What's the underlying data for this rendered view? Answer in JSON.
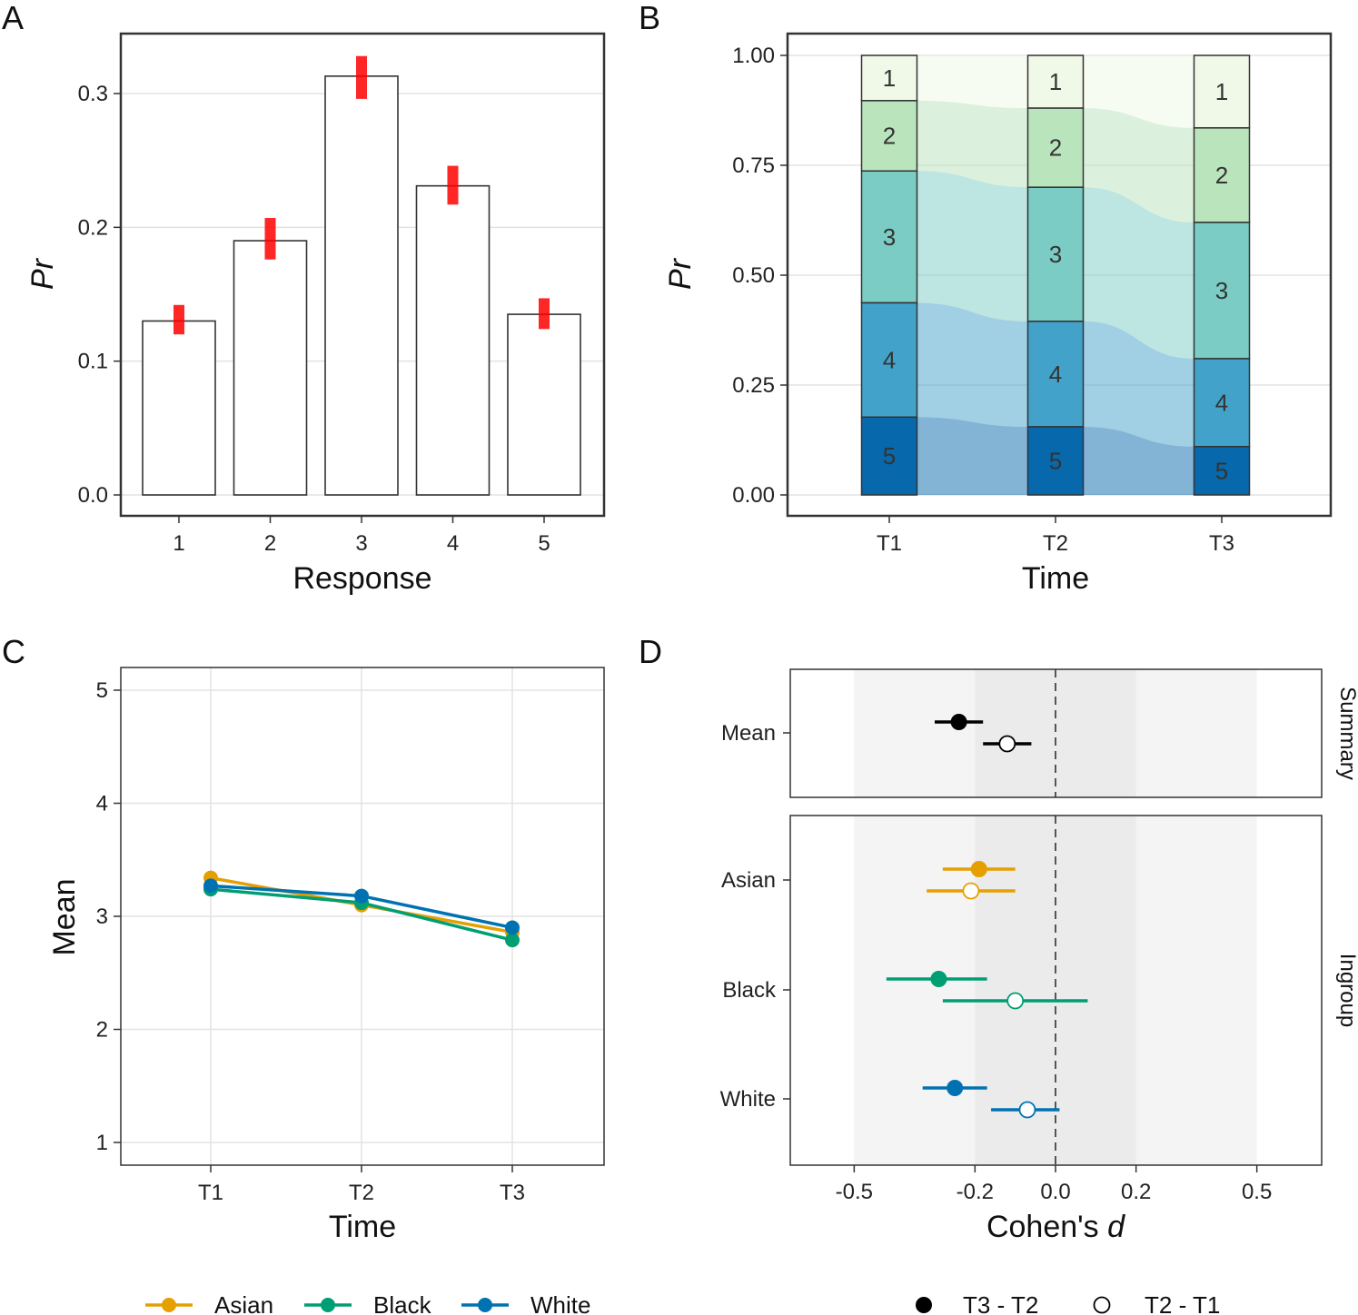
{
  "chart_data": [
    {
      "panel": "A",
      "type": "bar",
      "xlabel": "Response",
      "ylabel": "Pr",
      "categories": [
        "1",
        "2",
        "3",
        "4",
        "5"
      ],
      "values": [
        0.13,
        0.19,
        0.313,
        0.231,
        0.135
      ],
      "posterior_intervals": [
        [
          0.12,
          0.142
        ],
        [
          0.176,
          0.207
        ],
        [
          0.296,
          0.328
        ],
        [
          0.217,
          0.246
        ],
        [
          0.124,
          0.147
        ]
      ],
      "interval_color": "#ff0000",
      "ylim": [
        0,
        0.33
      ],
      "yticks": [
        "0.0",
        "0.1",
        "0.2",
        "0.3"
      ],
      "grid": true
    },
    {
      "panel": "B",
      "type": "stacked_bar_alluvial",
      "xlabel": "Time",
      "ylabel": "Pr",
      "categories": [
        "T1",
        "T2",
        "T3"
      ],
      "stack_levels": [
        "1",
        "2",
        "3",
        "4",
        "5"
      ],
      "stack_colors": [
        "#f0f9e8",
        "#bae4bc",
        "#7bccc4",
        "#43a2ca",
        "#0868ac"
      ],
      "proportions": {
        "T1": [
          0.103,
          0.16,
          0.3,
          0.26,
          0.177
        ],
        "T2": [
          0.12,
          0.18,
          0.305,
          0.24,
          0.155
        ],
        "T3": [
          0.165,
          0.215,
          0.31,
          0.2,
          0.11
        ]
      },
      "ylim": [
        0,
        1
      ],
      "yticks": [
        "0.00",
        "0.25",
        "0.50",
        "0.75",
        "1.00"
      ],
      "grid": true
    },
    {
      "panel": "C",
      "type": "line",
      "xlabel": "Time",
      "ylabel": "Mean",
      "x": [
        "T1",
        "T2",
        "T3"
      ],
      "series": [
        {
          "name": "Asian",
          "color": "#e69f00",
          "values": [
            3.34,
            3.1,
            2.86
          ]
        },
        {
          "name": "Black",
          "color": "#009e73",
          "values": [
            3.24,
            3.12,
            2.79
          ]
        },
        {
          "name": "White",
          "color": "#0072b2",
          "values": [
            3.27,
            3.18,
            2.9
          ]
        }
      ],
      "ylim": [
        0.8,
        5.2
      ],
      "yticks": [
        "1",
        "2",
        "3",
        "4",
        "5"
      ],
      "legend_position": "bottom",
      "grid": true
    },
    {
      "panel": "D",
      "type": "forest",
      "xlabel_main": "Cohen's ",
      "xlabel_italic": "d",
      "xlim": [
        -0.72,
        0.66
      ],
      "xticks": [
        {
          "value": -0.5,
          "label": "-0.5"
        },
        {
          "value": -0.2,
          "label": "-0.2"
        },
        {
          "value": 0.0,
          "label": "0.0"
        },
        {
          "value": 0.2,
          "label": "0.2"
        },
        {
          "value": 0.5,
          "label": "0.5"
        }
      ],
      "shaded_bands": [
        {
          "from": -0.5,
          "to": 0.5,
          "fill": "#f4f4f4"
        },
        {
          "from": -0.2,
          "to": 0.2,
          "fill": "#ebebeb"
        }
      ],
      "reference_line": 0.0,
      "facets": [
        {
          "strip": "Summary",
          "rows": [
            {
              "label": "Mean",
              "color": "#000000",
              "t3_t2": {
                "est": -0.24,
                "lo": -0.3,
                "hi": -0.18
              },
              "t2_t1": {
                "est": -0.12,
                "lo": -0.18,
                "hi": -0.06
              }
            }
          ]
        },
        {
          "strip": "Ingroup",
          "rows": [
            {
              "label": "Asian",
              "color": "#e69f00",
              "t3_t2": {
                "est": -0.19,
                "lo": -0.28,
                "hi": -0.1
              },
              "t2_t1": {
                "est": -0.21,
                "lo": -0.32,
                "hi": -0.1
              }
            },
            {
              "label": "Black",
              "color": "#009e73",
              "t3_t2": {
                "est": -0.29,
                "lo": -0.42,
                "hi": -0.17
              },
              "t2_t1": {
                "est": -0.1,
                "lo": -0.28,
                "hi": 0.08
              }
            },
            {
              "label": "White",
              "color": "#0072b2",
              "t3_t2": {
                "est": -0.25,
                "lo": -0.33,
                "hi": -0.17
              },
              "t2_t1": {
                "est": -0.07,
                "lo": -0.16,
                "hi": 0.01
              }
            }
          ]
        }
      ],
      "legend": [
        {
          "label": "T3 - T2",
          "filled": true
        },
        {
          "label": "T2 - T1",
          "filled": false
        }
      ],
      "legend_position": "bottom"
    }
  ]
}
